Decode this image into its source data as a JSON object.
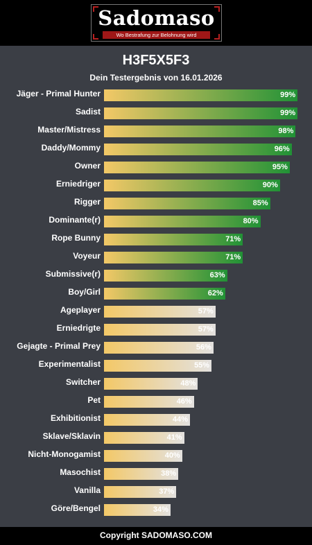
{
  "header": {
    "logo_text": "Sadomaso",
    "logo_tagline": "Wo Bestrafung zur Belohnung wird"
  },
  "title": "H3F5X5F3",
  "subtitle": "Dein Testergebnis von 16.01.2026",
  "footer": {
    "copyright": "Copyright SADOMASO.COM"
  },
  "colors": {
    "background": "#3b3e45",
    "bar_start": "#f3c867",
    "bar_high_end": "#219236",
    "bar_low_end": "#e3e1df"
  },
  "chart_data": {
    "type": "bar",
    "orientation": "horizontal",
    "title": "H3F5X5F3",
    "subtitle": "Dein Testergebnis von 16.01.2026",
    "xlim": [
      0,
      100
    ],
    "grid": false,
    "categories": [
      "Jäger - Primal Hunter",
      "Sadist",
      "Master/Mistress",
      "Daddy/Mommy",
      "Owner",
      "Erniedriger",
      "Rigger",
      "Dominante(r)",
      "Rope Bunny",
      "Voyeur",
      "Submissive(r)",
      "Boy/Girl",
      "Ageplayer",
      "Erniedrigte",
      "Gejagte - Primal Prey",
      "Experimentalist",
      "Switcher",
      "Pet",
      "Exhibitionist",
      "Sklave/Sklavin",
      "Nicht-Monogamist",
      "Masochist",
      "Vanilla",
      "Göre/Bengel"
    ],
    "values": [
      99,
      99,
      98,
      96,
      95,
      90,
      85,
      80,
      71,
      71,
      63,
      62,
      57,
      57,
      56,
      55,
      48,
      46,
      44,
      41,
      40,
      38,
      37,
      34
    ],
    "value_labels": [
      "99%",
      "99%",
      "98%",
      "96%",
      "95%",
      "90%",
      "85%",
      "80%",
      "71%",
      "71%",
      "63%",
      "62%",
      "57%",
      "57%",
      "56%",
      "55%",
      "48%",
      "46%",
      "44%",
      "41%",
      "40%",
      "38%",
      "37%",
      "34%"
    ]
  }
}
